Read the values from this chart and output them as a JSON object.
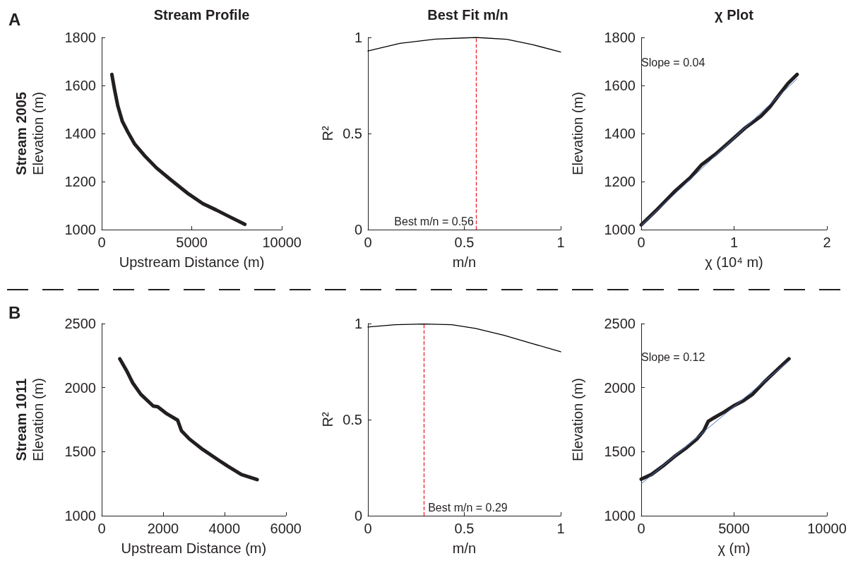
{
  "chart_data": [
    {
      "type": "line",
      "title": "Stream Profile",
      "xlabel": "Upstream Distance (m)",
      "ylabel": "Elevation (m)",
      "annotations": [
        "A",
        "Stream 2005"
      ],
      "xlim": [
        0,
        10000
      ],
      "xticks": [
        0,
        5000,
        10000
      ],
      "ylim": [
        1000,
        1800
      ],
      "yticks": [
        1000,
        1200,
        1400,
        1600,
        1800
      ],
      "grid": false,
      "marker": "none",
      "line_style": "solid",
      "series": [
        {
          "color": "#231f20",
          "x": [
            564,
            711,
            895,
            1140,
            1446,
            1814,
            2365,
            3039,
            3775,
            4755,
            5613,
            6348,
            7083,
            7941
          ],
          "values": [
            1646,
            1584,
            1515,
            1452,
            1407,
            1358,
            1309,
            1257,
            1211,
            1152,
            1108,
            1082,
            1054,
            1022
          ]
        }
      ]
    },
    {
      "type": "line",
      "title": "Best Fit m/n",
      "xlabel": "m/n",
      "ylabel": "R²",
      "xlim": [
        0,
        1
      ],
      "xticks": [
        0,
        0.5,
        1
      ],
      "ylim": [
        0,
        1
      ],
      "yticks": [
        0,
        0.5,
        1
      ],
      "grid": false,
      "marker": "none",
      "line_style": "solid",
      "series": [
        {
          "color": "#000000",
          "x": [
            0,
            0.166,
            0.35,
            0.56,
            0.72,
            0.853,
            1
          ],
          "values": [
            0.93,
            0.969,
            0.991,
            1.0,
            0.99,
            0.963,
            0.924
          ]
        }
      ],
      "ref_lines": [
        {
          "axis": "x",
          "value": 0.56,
          "label": "Best m/n = 0.56",
          "color": "#e8222a",
          "line_style": "dashed"
        }
      ]
    },
    {
      "type": "line",
      "title": "χ Plot",
      "xlabel": "χ (10⁴ m)",
      "ylabel": "Elevation (m)",
      "annotations": [
        "Slope = 0.04"
      ],
      "xlim": [
        0,
        2
      ],
      "xticks": [
        0,
        1,
        2
      ],
      "ylim": [
        1000,
        1800
      ],
      "yticks": [
        1000,
        1200,
        1400,
        1600,
        1800
      ],
      "grid": false,
      "marker": "none",
      "line_style": "solid",
      "series": [
        {
          "color": "#231f20",
          "x": [
            0,
            0.159,
            0.355,
            0.527,
            0.65,
            0.797,
            0.944,
            1.115,
            1.287,
            1.385,
            1.483,
            1.581,
            1.679
          ],
          "values": [
            1020,
            1079,
            1157,
            1216,
            1270,
            1313,
            1363,
            1422,
            1471,
            1510,
            1560,
            1609,
            1646
          ]
        },
        {
          "color": "#4a6fc4",
          "x": [
            0,
            1.679
          ],
          "values": [
            1017,
            1628
          ]
        }
      ]
    },
    {
      "type": "line",
      "xlabel": "Upstream Distance (m)",
      "ylabel": "Elevation (m)",
      "annotations": [
        "B",
        "Stream 1011"
      ],
      "xlim": [
        0,
        6000
      ],
      "xticks": [
        0,
        2000,
        4000,
        6000
      ],
      "ylim": [
        1000,
        2500
      ],
      "yticks": [
        1000,
        1500,
        2000,
        2500
      ],
      "grid": false,
      "marker": "none",
      "line_style": "solid",
      "series": [
        {
          "color": "#231f20",
          "x": [
            589,
            832,
            1016,
            1274,
            1679,
            1826,
            2121,
            2474,
            2599,
            2857,
            3299,
            3814,
            4108,
            4550,
            5066
          ],
          "values": [
            2225,
            2123,
            2035,
            1948,
            1856,
            1851,
            1796,
            1746,
            1663,
            1599,
            1516,
            1433,
            1387,
            1322,
            1282
          ]
        }
      ]
    },
    {
      "type": "line",
      "xlabel": "m/n",
      "ylabel": "R²",
      "xlim": [
        0,
        1
      ],
      "xticks": [
        0,
        0.5,
        1
      ],
      "ylim": [
        0,
        1
      ],
      "yticks": [
        0,
        0.5,
        1
      ],
      "grid": false,
      "marker": "none",
      "line_style": "solid",
      "series": [
        {
          "color": "#000000",
          "x": [
            0,
            0.141,
            0.29,
            0.436,
            0.558,
            0.706,
            0.853,
            1
          ],
          "values": [
            0.982,
            0.994,
            0.998,
            0.994,
            0.975,
            0.939,
            0.896,
            0.853
          ]
        }
      ],
      "ref_lines": [
        {
          "axis": "x",
          "value": 0.29,
          "label": "Best m/n = 0.29",
          "color": "#e8222a",
          "line_style": "dashed"
        }
      ]
    },
    {
      "type": "line",
      "xlabel": "χ (m)",
      "ylabel": "Elevation (m)",
      "annotations": [
        "Slope = 0.12"
      ],
      "xlim": [
        0,
        10000
      ],
      "xticks": [
        0,
        5000,
        10000
      ],
      "ylim": [
        1000,
        2500
      ],
      "yticks": [
        1000,
        1500,
        2000,
        2500
      ],
      "grid": false,
      "marker": "none",
      "line_style": "solid",
      "series": [
        {
          "color": "#231f20",
          "x": [
            0,
            551,
            1163,
            1775,
            2387,
            2999,
            3366,
            3611,
            3917,
            4468,
            4957,
            5447,
            5998,
            6671,
            7405,
            7956
          ],
          "values": [
            1285,
            1322,
            1387,
            1460,
            1525,
            1599,
            1663,
            1737,
            1764,
            1810,
            1856,
            1893,
            1948,
            2050,
            2151,
            2225
          ]
        },
        {
          "color": "#4a6fc4",
          "x": [
            0,
            7956
          ],
          "values": [
            1249,
            2209
          ]
        }
      ]
    }
  ]
}
